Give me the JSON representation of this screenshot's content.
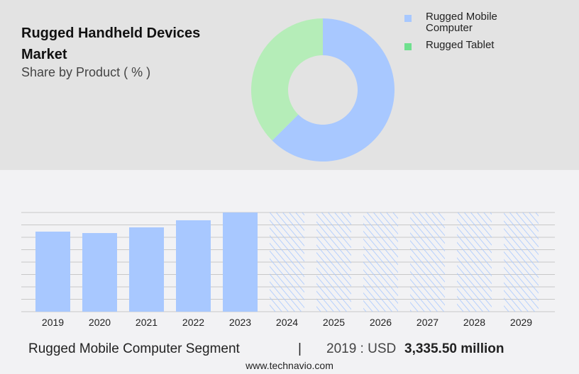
{
  "header": {
    "title": "Rugged Handheld Devices Market",
    "subtitle": "Share by Product ( % )"
  },
  "chart_data": [
    {
      "type": "pie",
      "donut": true,
      "categories": [
        "Rugged Mobile Computer",
        "Rugged Tablet"
      ],
      "values": [
        62.5,
        37.5
      ],
      "colors": [
        "#a8c8ff",
        "#b5edb8"
      ],
      "legend_colors": [
        "#a8c8ff",
        "#6fe08e"
      ],
      "legend_position": "right"
    },
    {
      "type": "bar",
      "categories": [
        "2019",
        "2020",
        "2021",
        "2022",
        "2023",
        "2024",
        "2025",
        "2026",
        "2027",
        "2028",
        "2029"
      ],
      "values": [
        3335.5,
        3276,
        3513,
        3808,
        4132,
        null,
        null,
        null,
        null,
        null,
        null
      ],
      "forecast_categories": [
        "2024",
        "2025",
        "2026",
        "2027",
        "2028",
        "2029"
      ],
      "ylim": [
        0,
        4132
      ],
      "grid": true,
      "color": "#a8c8ff",
      "forecast_style": "hatched"
    }
  ],
  "footer": {
    "segment": "Rugged Mobile Computer Segment",
    "separator": "|",
    "year_label": "2019 : USD",
    "value": "3,335.50 million",
    "site": "www.technavio.com"
  }
}
